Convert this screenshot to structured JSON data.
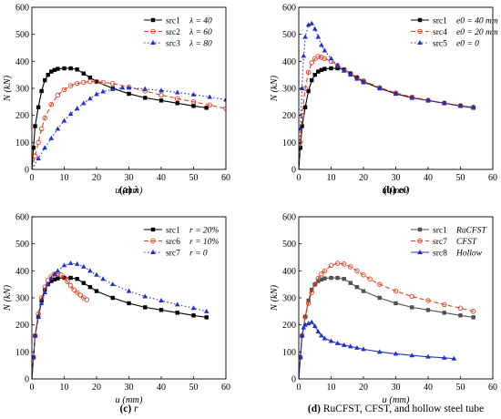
{
  "chart_data": [
    {
      "type": "line",
      "caption": {
        "letter": "(a)",
        "text": "λ"
      },
      "xlabel": "u (mm)",
      "ylabel": "N (kN)",
      "xlim": [
        0,
        60
      ],
      "ylim": [
        0,
        600
      ],
      "xticks": [
        "0",
        "10",
        "20",
        "30",
        "40",
        "50",
        "60"
      ],
      "yticks": [
        "0",
        "100",
        "200",
        "300",
        "400",
        "500",
        "600"
      ],
      "legend_position": "top-right",
      "series": [
        {
          "name": "src1",
          "param": "λ = 40",
          "color": "#000000",
          "marker": "square",
          "dash": "",
          "x": [
            0,
            0.5,
            1,
            2,
            3,
            4,
            5,
            6,
            7,
            8,
            10,
            12,
            14,
            16,
            18,
            20,
            25,
            30,
            35,
            40,
            45,
            50,
            54
          ],
          "y": [
            0,
            80,
            160,
            230,
            290,
            330,
            350,
            362,
            368,
            372,
            374,
            374,
            370,
            355,
            340,
            325,
            300,
            280,
            265,
            255,
            245,
            235,
            228
          ]
        },
        {
          "name": "src2",
          "param": "λ = 60",
          "color": "#e04020",
          "marker": "circle",
          "dash": "5,3",
          "x": [
            0,
            1,
            2,
            3,
            4,
            6,
            8,
            10,
            12,
            14,
            16,
            18,
            20,
            22,
            25,
            30,
            35,
            40,
            45,
            50,
            55,
            60
          ],
          "y": [
            0,
            50,
            100,
            150,
            190,
            240,
            275,
            295,
            310,
            318,
            322,
            325,
            325,
            322,
            318,
            305,
            290,
            275,
            262,
            250,
            238,
            225
          ]
        },
        {
          "name": "src3",
          "param": "λ = 80",
          "color": "#2030c8",
          "marker": "triangle",
          "dash": "1.5,2.5",
          "x": [
            0,
            2,
            4,
            6,
            8,
            10,
            12,
            14,
            16,
            18,
            20,
            22,
            25,
            28,
            30,
            35,
            40,
            45,
            50,
            55,
            60
          ],
          "y": [
            0,
            40,
            80,
            115,
            150,
            180,
            205,
            225,
            245,
            262,
            278,
            288,
            297,
            302,
            302,
            298,
            292,
            285,
            277,
            268,
            258
          ]
        }
      ]
    },
    {
      "type": "line",
      "caption": {
        "letter": "(b)",
        "text": "e0"
      },
      "xlabel": "u (mm)",
      "ylabel": "N (kN)",
      "xlim": [
        0,
        60
      ],
      "ylim": [
        0,
        600
      ],
      "xticks": [
        "0",
        "10",
        "20",
        "30",
        "40",
        "50",
        "60"
      ],
      "yticks": [
        "0",
        "100",
        "200",
        "300",
        "400",
        "500",
        "600"
      ],
      "legend_position": "top-right",
      "series": [
        {
          "name": "src1",
          "param": "e0 = 40 mm",
          "color": "#000000",
          "marker": "square",
          "dash": "",
          "x": [
            0,
            0.5,
            1,
            2,
            3,
            4,
            5,
            6,
            7,
            8,
            10,
            12,
            14,
            16,
            18,
            20,
            25,
            30,
            35,
            40,
            45,
            50,
            54
          ],
          "y": [
            0,
            80,
            160,
            230,
            290,
            330,
            350,
            362,
            368,
            372,
            374,
            374,
            370,
            355,
            340,
            325,
            300,
            280,
            265,
            255,
            245,
            235,
            228
          ]
        },
        {
          "name": "src4",
          "param": "e0 = 20 mm",
          "color": "#e04020",
          "marker": "circle",
          "dash": "5,3",
          "x": [
            0,
            0.5,
            1,
            2,
            3,
            4,
            5,
            6,
            7,
            8,
            10,
            12,
            14,
            16,
            18,
            20,
            25,
            30,
            35,
            40,
            45,
            50,
            54
          ],
          "y": [
            0,
            100,
            200,
            300,
            360,
            395,
            410,
            418,
            415,
            410,
            400,
            385,
            370,
            355,
            340,
            328,
            303,
            283,
            268,
            256,
            246,
            236,
            230
          ]
        },
        {
          "name": "src5",
          "param": "e0 = 0",
          "color": "#2030c8",
          "marker": "triangle",
          "dash": "1.5,2.5",
          "x": [
            0,
            0.5,
            1,
            1.5,
            2,
            3,
            4,
            5,
            6,
            7,
            8,
            10,
            12,
            14,
            16,
            18,
            20,
            25,
            30,
            35,
            40,
            45,
            50,
            54
          ],
          "y": [
            0,
            150,
            300,
            420,
            490,
            535,
            540,
            520,
            490,
            460,
            440,
            410,
            385,
            365,
            350,
            335,
            322,
            300,
            280,
            265,
            255,
            245,
            235,
            230
          ]
        }
      ]
    },
    {
      "type": "line",
      "caption": {
        "letter": "(c)",
        "text": "r"
      },
      "xlabel": "u (mm)",
      "ylabel": "N (kN)",
      "xlim": [
        0,
        60
      ],
      "ylim": [
        0,
        600
      ],
      "xticks": [
        "0",
        "10",
        "20",
        "30",
        "40",
        "50",
        "60"
      ],
      "yticks": [
        "0",
        "100",
        "200",
        "300",
        "400",
        "500",
        "600"
      ],
      "legend_position": "top-right",
      "series": [
        {
          "name": "src1",
          "param": "r = 20%",
          "color": "#000000",
          "marker": "square",
          "dash": "",
          "x": [
            0,
            0.5,
            1,
            2,
            3,
            4,
            5,
            6,
            7,
            8,
            10,
            12,
            14,
            16,
            18,
            20,
            25,
            30,
            35,
            40,
            45,
            50,
            54
          ],
          "y": [
            0,
            80,
            160,
            230,
            290,
            330,
            350,
            362,
            368,
            372,
            374,
            374,
            370,
            355,
            340,
            325,
            300,
            280,
            265,
            255,
            245,
            235,
            228
          ]
        },
        {
          "name": "src6",
          "param": "r = 10%",
          "color": "#e04020",
          "marker": "circle",
          "dash": "5,3",
          "x": [
            0,
            0.5,
            1,
            2,
            3,
            4,
            5,
            6,
            7,
            8,
            9,
            10,
            11,
            12,
            13,
            14,
            15,
            16,
            17
          ],
          "y": [
            0,
            80,
            160,
            240,
            300,
            340,
            365,
            380,
            388,
            390,
            385,
            375,
            360,
            345,
            330,
            320,
            310,
            300,
            293
          ]
        },
        {
          "name": "src7",
          "param": "r = 0",
          "color": "#2030c8",
          "marker": "triangle",
          "dash": "1.5,2.5",
          "x": [
            0,
            0.5,
            1,
            2,
            3,
            4,
            5,
            6,
            7,
            8,
            10,
            12,
            14,
            16,
            18,
            20,
            22,
            25,
            30,
            35,
            40,
            45,
            50,
            54
          ],
          "y": [
            0,
            80,
            160,
            230,
            280,
            320,
            350,
            372,
            388,
            400,
            420,
            428,
            425,
            415,
            400,
            385,
            370,
            350,
            325,
            305,
            290,
            275,
            262,
            250
          ]
        }
      ]
    },
    {
      "type": "line",
      "caption": {
        "letter": "(d)",
        "text": "RuCFST, CFST, and hollow steel tube"
      },
      "xlabel": "u (mm)",
      "ylabel": "N (kN)",
      "xlim": [
        0,
        60
      ],
      "ylim": [
        0,
        600
      ],
      "xticks": [
        "0",
        "10",
        "20",
        "30",
        "40",
        "50",
        "60"
      ],
      "yticks": [
        "0",
        "100",
        "200",
        "300",
        "400",
        "500",
        "600"
      ],
      "legend_position": "top-right",
      "series": [
        {
          "name": "src1",
          "param": "RuCFST",
          "color": "#505050",
          "marker": "square",
          "dash": "",
          "x": [
            0,
            0.5,
            1,
            2,
            3,
            4,
            5,
            6,
            7,
            8,
            10,
            12,
            14,
            16,
            18,
            20,
            25,
            30,
            35,
            40,
            45,
            50,
            54
          ],
          "y": [
            0,
            80,
            160,
            230,
            290,
            330,
            350,
            362,
            368,
            372,
            374,
            374,
            370,
            355,
            340,
            325,
            300,
            280,
            265,
            255,
            245,
            235,
            228
          ]
        },
        {
          "name": "src7",
          "param": "CFST",
          "color": "#e04020",
          "marker": "circle",
          "dash": "5,3",
          "x": [
            0,
            0.5,
            1,
            2,
            3,
            4,
            5,
            6,
            7,
            8,
            10,
            12,
            14,
            16,
            18,
            20,
            22,
            25,
            30,
            35,
            40,
            45,
            50,
            54
          ],
          "y": [
            0,
            80,
            160,
            230,
            280,
            320,
            350,
            372,
            388,
            400,
            420,
            428,
            425,
            415,
            400,
            385,
            370,
            350,
            325,
            305,
            290,
            275,
            262,
            250
          ]
        },
        {
          "name": "src8",
          "param": "Hollow",
          "color": "#2030c8",
          "marker": "triangle",
          "dash": "",
          "x": [
            0,
            0.5,
            1,
            1.5,
            2,
            3,
            4,
            5,
            6,
            7,
            8,
            10,
            12,
            14,
            16,
            18,
            20,
            25,
            30,
            35,
            40,
            45,
            48
          ],
          "y": [
            0,
            80,
            160,
            190,
            200,
            205,
            210,
            195,
            175,
            160,
            150,
            140,
            132,
            125,
            120,
            115,
            110,
            100,
            93,
            87,
            82,
            78,
            75
          ]
        }
      ]
    }
  ]
}
